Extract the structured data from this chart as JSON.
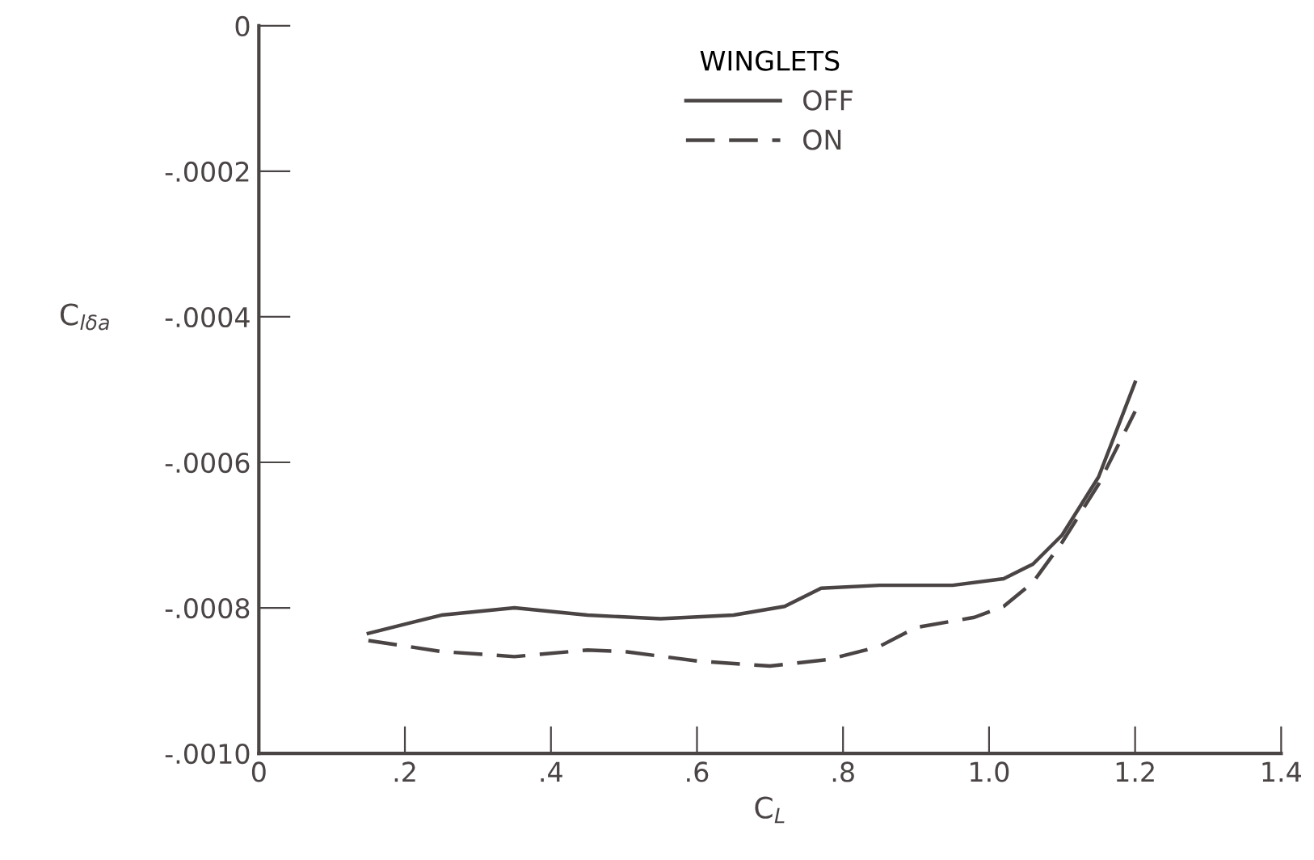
{
  "chart_data": {
    "type": "line",
    "xlabel": "C$_{L}$",
    "ylabel": "C$_{lδa}$",
    "legend_title": "WINGLETS",
    "legend": "top",
    "grid": false,
    "marker": "none",
    "xlim": [
      0,
      1.4
    ],
    "xticks": [
      0,
      {
        "value": 0.2,
        "label": ".2"
      },
      {
        "value": 0.4,
        "label": ".4"
      },
      {
        "value": 0.6,
        "label": ".6"
      },
      {
        "value": 0.8,
        "label": ".8"
      },
      {
        "value": 1.0,
        "label": "1.0"
      },
      {
        "value": 1.2,
        "label": "1.2"
      },
      {
        "value": 1.4,
        "label": "1.4"
      }
    ],
    "ylim": [
      -0.001,
      0
    ],
    "yticks": [
      {
        "value": -0.001,
        "label": "-.0010"
      },
      {
        "value": -0.0008,
        "label": "-.0008"
      },
      {
        "value": -0.0006,
        "label": "-.0006"
      },
      {
        "value": -0.0004,
        "label": "-.0004"
      },
      {
        "value": -0.0002,
        "label": "-.0002"
      },
      0
    ],
    "series": [
      {
        "name": "OFF",
        "color": "#4a4444",
        "line_style": "solid",
        "x": [
          0.15,
          0.25,
          0.35,
          0.45,
          0.55,
          0.65,
          0.72,
          0.77,
          0.85,
          0.95,
          1.02,
          1.06,
          1.1,
          1.15,
          1.2
        ],
        "values": [
          -0.000835,
          -0.00081,
          -0.0008,
          -0.00081,
          -0.000815,
          -0.00081,
          -0.000798,
          -0.000773,
          -0.000769,
          -0.000769,
          -0.00076,
          -0.00074,
          -0.0007,
          -0.00062,
          -0.00049
        ]
      },
      {
        "name": "ON",
        "color": "#4a4444",
        "line_style": "dashed",
        "x": [
          0.15,
          0.25,
          0.35,
          0.45,
          0.5,
          0.6,
          0.7,
          0.78,
          0.85,
          0.9,
          0.98,
          1.02,
          1.06,
          1.1,
          1.15,
          1.2
        ],
        "values": [
          -0.000845,
          -0.00086,
          -0.000867,
          -0.000858,
          -0.00086,
          -0.000873,
          -0.00088,
          -0.000871,
          -0.000853,
          -0.000827,
          -0.000813,
          -0.000798,
          -0.000765,
          -0.00071,
          -0.00063,
          -0.00053
        ]
      }
    ]
  }
}
